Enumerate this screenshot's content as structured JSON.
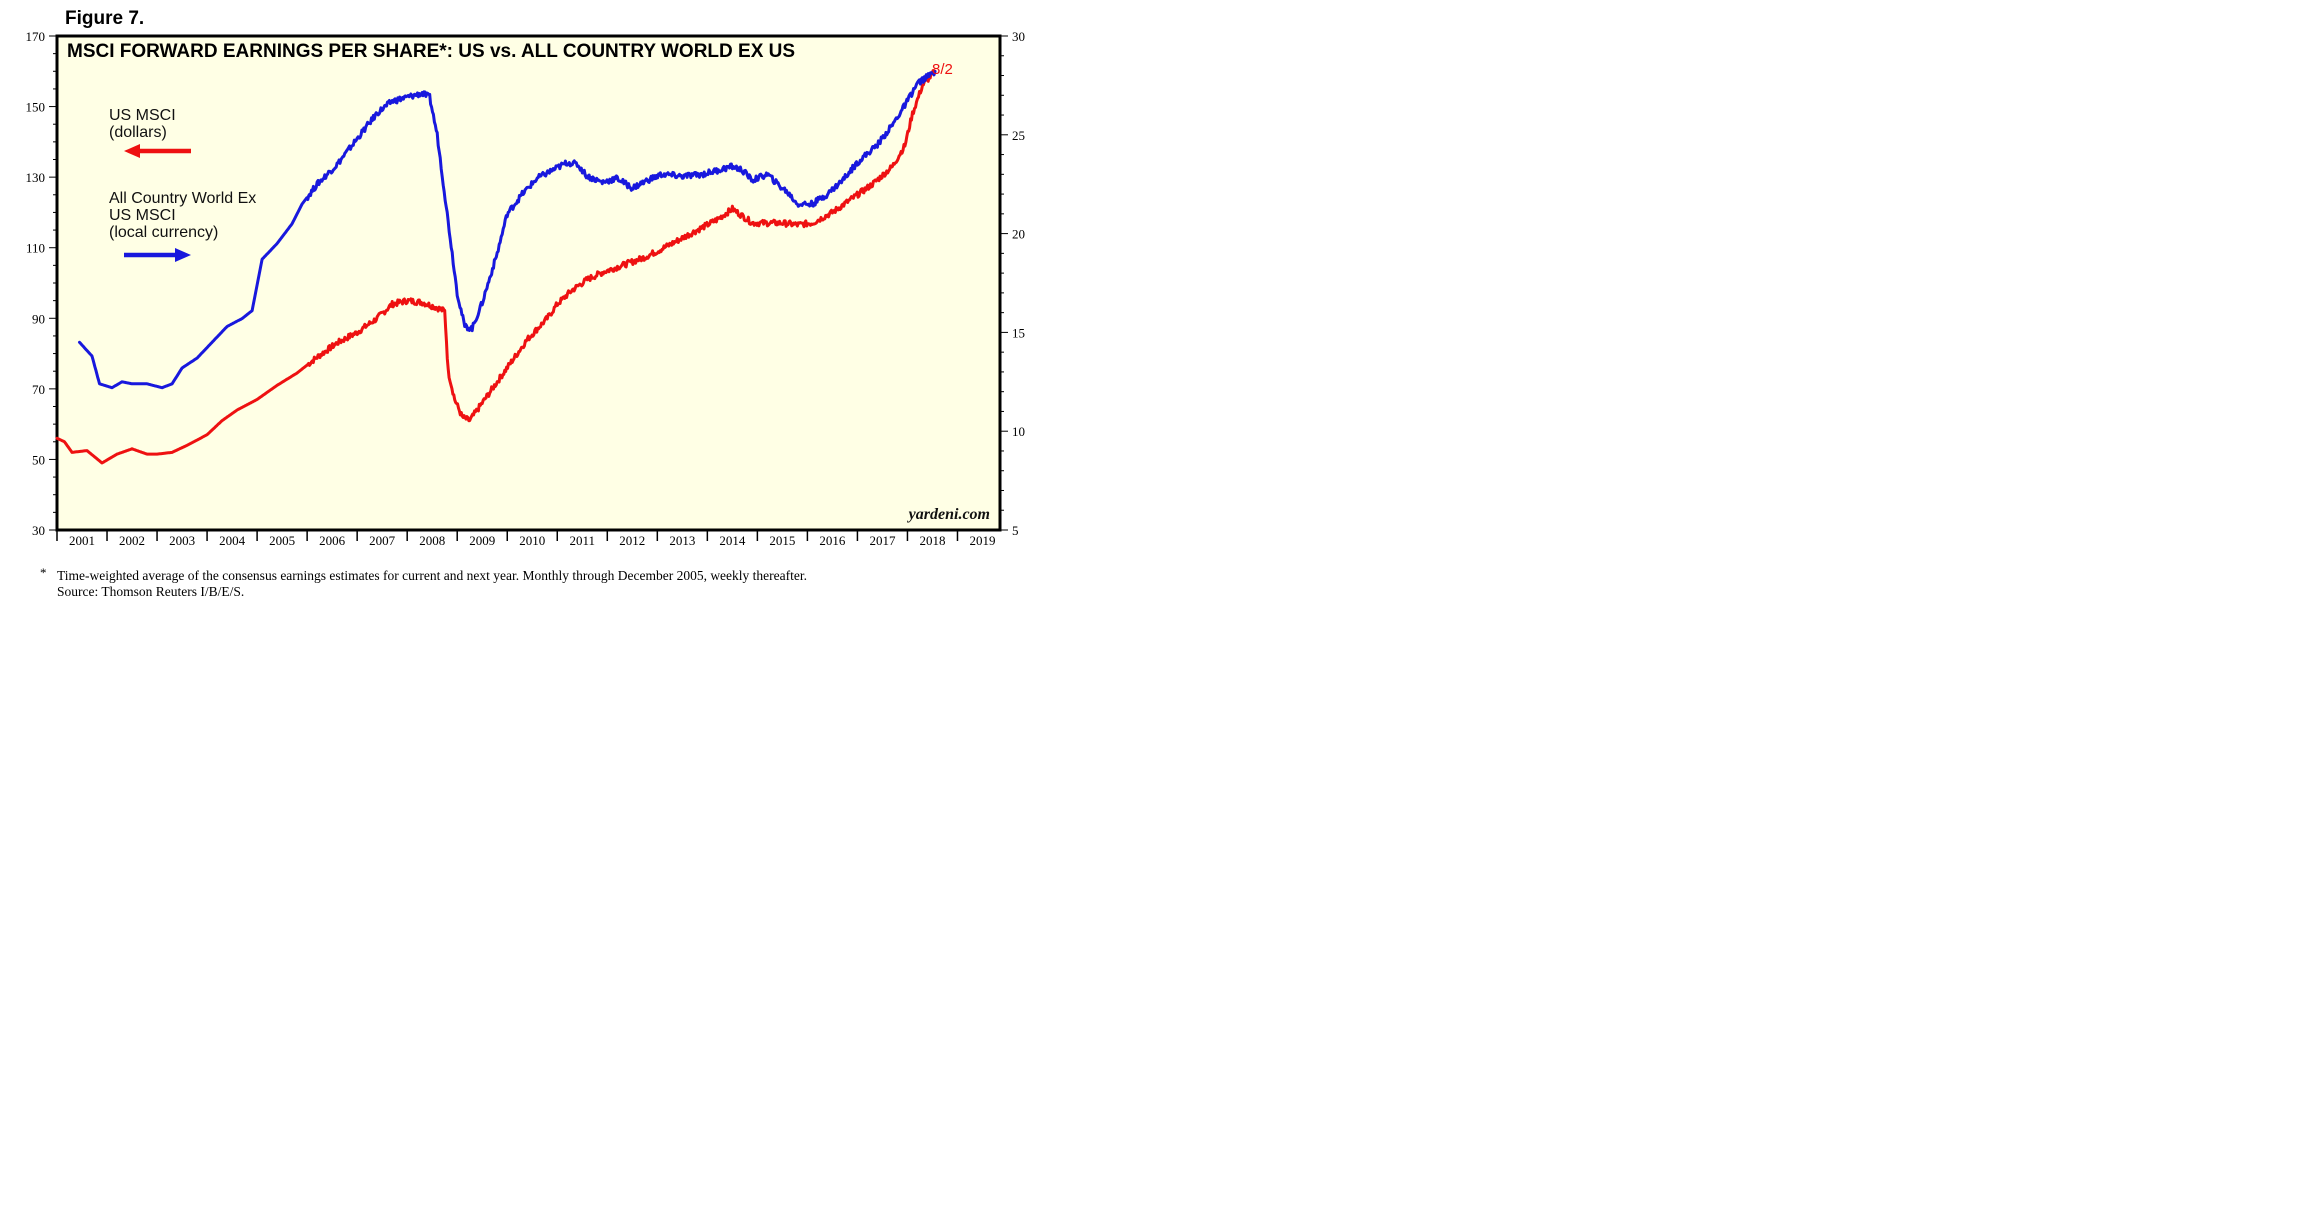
{
  "figure_label": "Figure 7.",
  "chart_data": {
    "type": "line",
    "title": "MSCI FORWARD EARNINGS PER SHARE*: US vs. ALL COUNTRY WORLD EX US",
    "x_range": [
      2001.0,
      2019.85
    ],
    "x_ticks": [
      "2001",
      "2002",
      "2003",
      "2004",
      "2005",
      "2006",
      "2007",
      "2008",
      "2009",
      "2010",
      "2011",
      "2012",
      "2013",
      "2014",
      "2015",
      "2016",
      "2017",
      "2018",
      "2019"
    ],
    "y_left": {
      "range": [
        30,
        170
      ],
      "ticks": [
        "170",
        "150",
        "130",
        "110",
        "90",
        "70",
        "50",
        "30"
      ]
    },
    "y_right": {
      "range": [
        5,
        30
      ],
      "ticks": [
        "30",
        "25",
        "20",
        "15",
        "10",
        "5"
      ]
    },
    "grid": false,
    "background_color": "#ffffe5",
    "series": [
      {
        "name": "US MSCI (dollars)",
        "axis": "left",
        "color": "#ee1111",
        "points": [
          [
            2001.0,
            56
          ],
          [
            2001.15,
            55
          ],
          [
            2001.3,
            52
          ],
          [
            2001.6,
            52.5
          ],
          [
            2001.9,
            49
          ],
          [
            2002.2,
            51.5
          ],
          [
            2002.5,
            53
          ],
          [
            2002.8,
            51.5
          ],
          [
            2003.0,
            51.5
          ],
          [
            2003.3,
            52
          ],
          [
            2003.6,
            54
          ],
          [
            2004.0,
            57
          ],
          [
            2004.3,
            61
          ],
          [
            2004.6,
            64
          ],
          [
            2005.0,
            67
          ],
          [
            2005.4,
            71
          ],
          [
            2005.8,
            74.5
          ],
          [
            2006.2,
            79
          ],
          [
            2006.6,
            83
          ],
          [
            2007.0,
            86
          ],
          [
            2007.4,
            90
          ],
          [
            2007.7,
            94
          ],
          [
            2008.0,
            95
          ],
          [
            2008.3,
            94.5
          ],
          [
            2008.6,
            93
          ],
          [
            2008.75,
            92
          ],
          [
            2008.82,
            75
          ],
          [
            2008.95,
            67
          ],
          [
            2009.1,
            62
          ],
          [
            2009.25,
            61
          ],
          [
            2009.5,
            66
          ],
          [
            2009.8,
            72
          ],
          [
            2010.1,
            78
          ],
          [
            2010.4,
            84
          ],
          [
            2010.8,
            90
          ],
          [
            2011.0,
            94
          ],
          [
            2011.3,
            98
          ],
          [
            2011.6,
            101
          ],
          [
            2011.9,
            103
          ],
          [
            2012.3,
            105
          ],
          [
            2012.7,
            107
          ],
          [
            2013.0,
            109
          ],
          [
            2013.4,
            112
          ],
          [
            2013.8,
            115
          ],
          [
            2014.2,
            118
          ],
          [
            2014.5,
            121
          ],
          [
            2014.7,
            119
          ],
          [
            2014.9,
            117
          ],
          [
            2015.2,
            117
          ],
          [
            2015.5,
            117
          ],
          [
            2015.8,
            116.5
          ],
          [
            2016.1,
            117
          ],
          [
            2016.5,
            120
          ],
          [
            2016.9,
            124
          ],
          [
            2017.3,
            128
          ],
          [
            2017.7,
            133
          ],
          [
            2017.95,
            139
          ],
          [
            2018.1,
            148
          ],
          [
            2018.3,
            156
          ],
          [
            2018.55,
            160
          ]
        ]
      },
      {
        "name": "All Country World Ex US MSCI (local currency)",
        "axis": "right",
        "color": "#1818dd",
        "points": [
          [
            2001.45,
            14.5
          ],
          [
            2001.7,
            13.8
          ],
          [
            2001.85,
            12.4
          ],
          [
            2002.1,
            12.2
          ],
          [
            2002.3,
            12.5
          ],
          [
            2002.5,
            12.4
          ],
          [
            2002.8,
            12.4
          ],
          [
            2003.1,
            12.2
          ],
          [
            2003.3,
            12.4
          ],
          [
            2003.5,
            13.2
          ],
          [
            2003.8,
            13.7
          ],
          [
            2004.1,
            14.5
          ],
          [
            2004.4,
            15.3
          ],
          [
            2004.7,
            15.7
          ],
          [
            2004.9,
            16.1
          ],
          [
            2005.1,
            18.7
          ],
          [
            2005.4,
            19.5
          ],
          [
            2005.7,
            20.5
          ],
          [
            2005.9,
            21.5
          ],
          [
            2006.2,
            22.5
          ],
          [
            2006.6,
            23.5
          ],
          [
            2007.0,
            24.8
          ],
          [
            2007.4,
            26.1
          ],
          [
            2007.7,
            26.7
          ],
          [
            2008.0,
            26.9
          ],
          [
            2008.3,
            27.1
          ],
          [
            2008.45,
            26.9
          ],
          [
            2008.6,
            25
          ],
          [
            2008.8,
            21
          ],
          [
            2009.0,
            17
          ],
          [
            2009.15,
            15.3
          ],
          [
            2009.3,
            15.2
          ],
          [
            2009.5,
            16.5
          ],
          [
            2009.8,
            19
          ],
          [
            2010.0,
            21
          ],
          [
            2010.3,
            22
          ],
          [
            2010.6,
            22.8
          ],
          [
            2010.9,
            23.2
          ],
          [
            2011.2,
            23.6
          ],
          [
            2011.4,
            23.5
          ],
          [
            2011.6,
            22.9
          ],
          [
            2011.9,
            22.6
          ],
          [
            2012.2,
            22.8
          ],
          [
            2012.5,
            22.3
          ],
          [
            2012.8,
            22.7
          ],
          [
            2013.1,
            23.0
          ],
          [
            2013.5,
            22.9
          ],
          [
            2013.9,
            23.0
          ],
          [
            2014.2,
            23.2
          ],
          [
            2014.5,
            23.4
          ],
          [
            2014.7,
            23.2
          ],
          [
            2014.9,
            22.7
          ],
          [
            2015.2,
            23.0
          ],
          [
            2015.45,
            22.4
          ],
          [
            2015.6,
            22.1
          ],
          [
            2015.8,
            21.5
          ],
          [
            2016.1,
            21.5
          ],
          [
            2016.4,
            22.0
          ],
          [
            2016.7,
            22.7
          ],
          [
            2017.0,
            23.6
          ],
          [
            2017.4,
            24.5
          ],
          [
            2017.7,
            25.5
          ],
          [
            2017.95,
            26.5
          ],
          [
            2018.2,
            27.6
          ],
          [
            2018.55,
            28.2
          ]
        ]
      }
    ],
    "legend": [
      {
        "label_lines": [
          "US MSCI",
          "(dollars)"
        ],
        "arrow": "left",
        "color": "#ee1111"
      },
      {
        "label_lines": [
          "All Country World Ex",
          "US MSCI",
          "(local currency)"
        ],
        "arrow": "right",
        "color": "#1818dd"
      }
    ],
    "annotation_end": "8/2",
    "watermark": "yardeni.com"
  },
  "footnote": {
    "star": "*",
    "line1": "Time-weighted average of the consensus earnings estimates for current and next year. Monthly through December 2005, weekly thereafter.",
    "line2": "Source: Thomson Reuters I/B/E/S."
  }
}
